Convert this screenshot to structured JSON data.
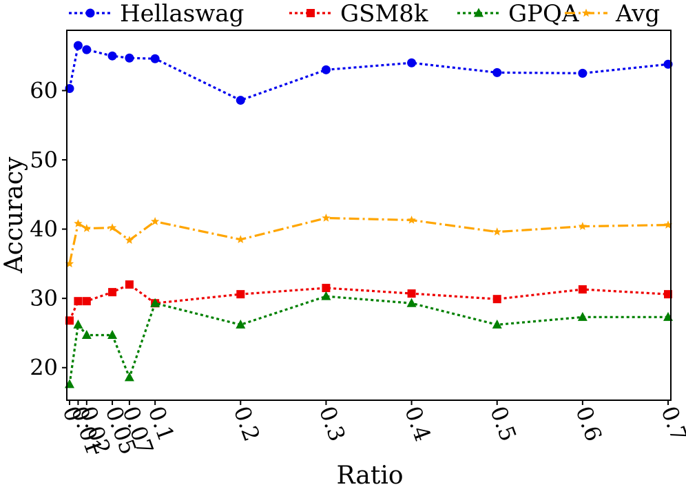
{
  "chart_data": {
    "type": "line",
    "xlabel": "Ratio",
    "ylabel": "Accuracy",
    "x": [
      0,
      0.01,
      0.02,
      0.05,
      0.07,
      0.1,
      0.2,
      0.3,
      0.4,
      0.5,
      0.6,
      0.7
    ],
    "x_tick_labels": [
      "0",
      "0.01",
      "0.02",
      "0.05",
      "0.07",
      "0.1",
      "0.2",
      "0.3",
      "0.4",
      "0.5",
      "0.6",
      "0.7"
    ],
    "y_ticks": [
      20,
      30,
      40,
      50,
      60
    ],
    "ylim": [
      15.3,
      68.7
    ],
    "grid": false,
    "legend_placement": "top",
    "series": [
      {
        "name": "Hellaswag",
        "color": "#0000ee",
        "marker": "circle",
        "line_style": "dotted",
        "values": [
          60.3,
          66.5,
          65.9,
          65.0,
          64.7,
          64.6,
          58.6,
          63.0,
          64.0,
          62.6,
          62.5,
          63.8
        ]
      },
      {
        "name": "GSM8k",
        "color": "#ee0000",
        "marker": "square",
        "line_style": "dotted",
        "values": [
          26.8,
          29.6,
          29.6,
          30.9,
          32.0,
          29.3,
          30.6,
          31.5,
          30.7,
          29.9,
          31.3,
          30.6
        ]
      },
      {
        "name": "GPQA",
        "color": "#008000",
        "marker": "triangle",
        "line_style": "dotted",
        "values": [
          17.6,
          26.2,
          24.7,
          24.7,
          18.6,
          29.3,
          26.2,
          30.3,
          29.3,
          26.2,
          27.3,
          27.3
        ]
      },
      {
        "name": "Avg",
        "color": "#ffa500",
        "marker": "star",
        "line_style": "dashdot",
        "values": [
          35.0,
          40.8,
          40.1,
          40.2,
          38.4,
          41.1,
          38.5,
          41.6,
          41.3,
          39.6,
          40.4,
          40.6
        ]
      }
    ]
  }
}
